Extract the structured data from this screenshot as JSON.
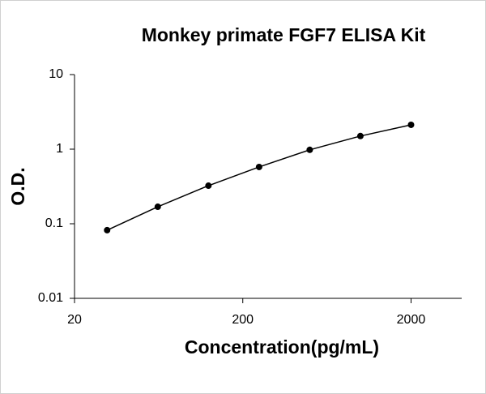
{
  "chart_data": {
    "type": "line",
    "title": "Monkey primate FGF7 ELISA Kit",
    "x_label": "Concentration(pg/mL)",
    "y_label": "O.D.",
    "x": [
      31.25,
      62.5,
      125,
      250,
      500,
      1000,
      2000
    ],
    "values": [
      0.082,
      0.169,
      0.324,
      0.577,
      0.98,
      1.5,
      2.12
    ],
    "color": "#000000",
    "xlim": [
      20,
      4000
    ],
    "xticks": [
      20,
      200,
      2000
    ],
    "ylim": [
      0.01,
      10
    ],
    "yticks": [
      0.01,
      0.1,
      1,
      10
    ],
    "x_log": true,
    "y_log": true
  }
}
